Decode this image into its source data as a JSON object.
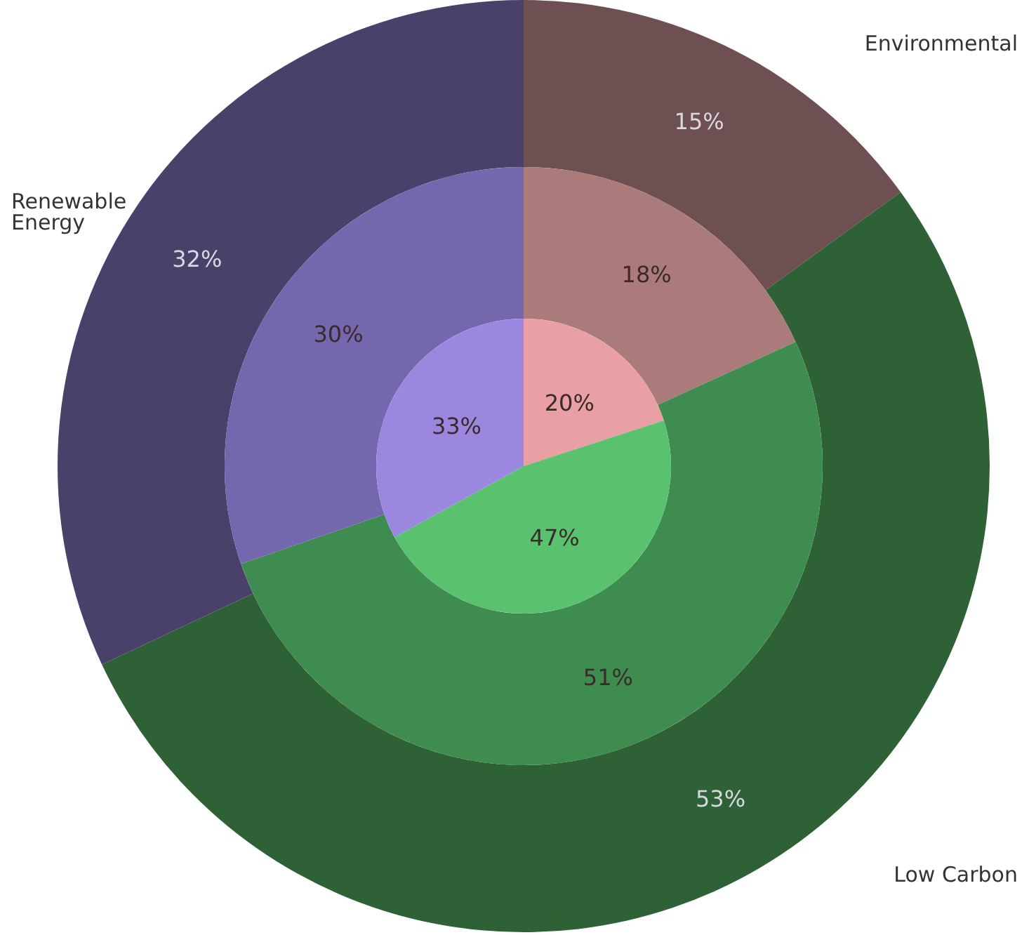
{
  "chart_data": {
    "type": "pie",
    "categories": [
      "Environmental",
      "Low Carbon",
      "Renewable Energy"
    ],
    "series": [
      {
        "values": [
          15,
          53,
          32
        ],
        "value_labels": [
          "15%",
          "53%",
          "32%"
        ],
        "colors": [
          "#6e4f52",
          "#2e6136",
          "#4a416b"
        ]
      },
      {
        "values": [
          18,
          51,
          30
        ],
        "value_labels": [
          "18%",
          "51%",
          "30%"
        ],
        "colors": [
          "#ab7b7b",
          "#3f8c50",
          "#7467ad"
        ]
      },
      {
        "values": [
          20,
          47,
          33
        ],
        "value_labels": [
          "20%",
          "47%",
          "33%"
        ],
        "colors": [
          "#e8a0a4",
          "#5ac26e",
          "#9b87e0"
        ]
      }
    ]
  }
}
